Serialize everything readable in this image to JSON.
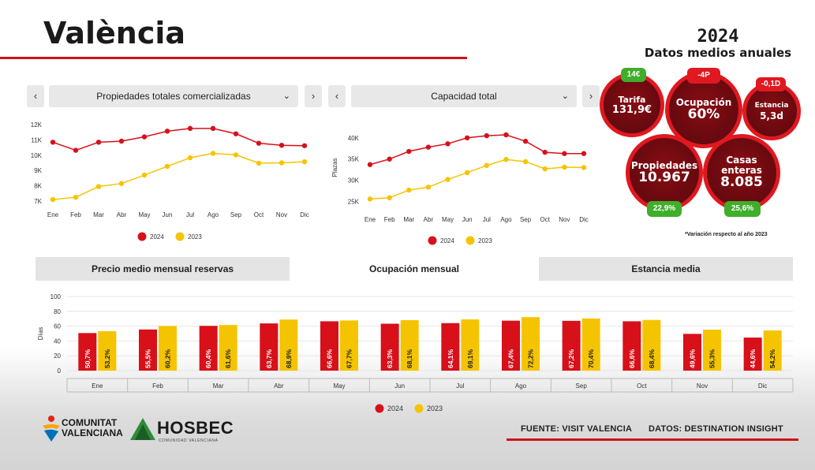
{
  "page": {
    "title": "València",
    "year": "2024",
    "subtitle": "Datos medios anuales",
    "note": "*Variación respecto al año 2023",
    "source": "FUENTE: VISIT VALENCIA",
    "data_source": "DATOS: DESTINATION INSIGHT"
  },
  "logos": {
    "comunitat_line1": "COMUNITAT",
    "comunitat_line2": "VALENCIANA",
    "hosbec": "HOSBEC",
    "hosbec_sub": "COMUNIDAD VALENCIANA"
  },
  "controls": {
    "prev_glyph": "‹",
    "next_glyph": "›",
    "chevron_glyph": "⌄",
    "left_dropdown": "Propiedades totales comercializadas",
    "right_dropdown": "Capacidad total"
  },
  "tabs": [
    {
      "label": "Precio medio mensual reservas",
      "active": false
    },
    {
      "label": "Ocupación mensual",
      "active": true
    },
    {
      "label": "Estancia media",
      "active": false
    }
  ],
  "kpis": {
    "tarifa": {
      "label": "Tarifa",
      "value": "131,9€",
      "change": "14€",
      "change_color": "green"
    },
    "ocupacion": {
      "label": "Ocupación",
      "value": "60%",
      "change": "-4P",
      "change_color": "red"
    },
    "estancia": {
      "label": "Estancia",
      "value": "5,3d",
      "change": "-0,1D",
      "change_color": "red"
    },
    "propiedades": {
      "label": "Propiedades",
      "value": "10.967",
      "change": "22,9%",
      "change_color": "green"
    },
    "casas": {
      "label_line1": "Casas",
      "label_line2": "enteras",
      "value": "8.085",
      "change": "25,6%",
      "change_color": "green"
    }
  },
  "colors": {
    "y2024": "#d7101a",
    "y2023": "#f5c400",
    "accent": "#d0101a"
  },
  "chart_data": [
    {
      "type": "line",
      "categories": [
        "Ene",
        "Feb",
        "Mar",
        "Abr",
        "May",
        "Jun",
        "Jul",
        "Ago",
        "Sep",
        "Oct",
        "Nov",
        "Dic"
      ],
      "ylim": [
        7000,
        12000
      ],
      "yticks": [
        7000,
        8000,
        9000,
        10000,
        11000,
        12000
      ],
      "ytick_labels": [
        "7K",
        "8K",
        "9K",
        "10K",
        "11K",
        "12K"
      ],
      "ylabel": "",
      "series": [
        {
          "name": "2024",
          "color": "#d7101a",
          "values": [
            10850,
            10320,
            10850,
            10920,
            11200,
            11570,
            11750,
            11750,
            11400,
            10780,
            10650,
            10620
          ]
        },
        {
          "name": "2023",
          "color": "#f5c400",
          "values": [
            7100,
            7250,
            7950,
            8150,
            8700,
            9270,
            9830,
            10120,
            10020,
            9480,
            9500,
            9570
          ]
        }
      ]
    },
    {
      "type": "line",
      "categories": [
        "Ene",
        "Feb",
        "Mar",
        "Abr",
        "May",
        "Jun",
        "Jul",
        "Ago",
        "Sep",
        "Oct",
        "Nov",
        "Dic"
      ],
      "ylim": [
        24000,
        42000
      ],
      "yticks": [
        25000,
        30000,
        35000,
        40000
      ],
      "ytick_labels": [
        "25K",
        "30K",
        "35K",
        "40K"
      ],
      "ylabel": "Plazas",
      "series": [
        {
          "name": "2024",
          "color": "#d7101a",
          "values": [
            33700,
            35000,
            36800,
            37800,
            38600,
            40000,
            40500,
            40700,
            39200,
            36600,
            36300,
            36300
          ]
        },
        {
          "name": "2023",
          "color": "#f5c400",
          "values": [
            25600,
            25900,
            27700,
            28400,
            30200,
            31800,
            33500,
            34900,
            34400,
            32700,
            33100,
            33000
          ]
        }
      ]
    },
    {
      "type": "bar",
      "categories": [
        "Ene",
        "Feb",
        "Mar",
        "Abr",
        "May",
        "Jun",
        "Jul",
        "Ago",
        "Sep",
        "Oct",
        "Nov",
        "Dic"
      ],
      "ylim": [
        0,
        100
      ],
      "yticks": [
        0,
        20,
        40,
        60,
        80,
        100
      ],
      "ylabel": "Días",
      "series": [
        {
          "name": "2024",
          "color": "#d7101a",
          "values": [
            50.7,
            55.5,
            60.4,
            63.7,
            66.6,
            63.3,
            64.1,
            67.4,
            67.2,
            66.6,
            49.6,
            44.6
          ],
          "labels": [
            "50,7%",
            "55,5%",
            "60,4%",
            "63,7%",
            "66,6%",
            "63,3%",
            "64,1%",
            "67,4%",
            "67,2%",
            "66,6%",
            "49,6%",
            "44,6%"
          ]
        },
        {
          "name": "2023",
          "color": "#f5c400",
          "values": [
            53.2,
            60.2,
            61.6,
            68.9,
            67.7,
            68.1,
            69.1,
            72.2,
            70.4,
            68.4,
            55.3,
            54.2
          ],
          "labels": [
            "53,2%",
            "60,2%",
            "61,6%",
            "68,9%",
            "67,7%",
            "68,1%",
            "69,1%",
            "72,2%",
            "70,4%",
            "68,4%",
            "55,3%",
            "54,2%"
          ]
        }
      ]
    }
  ]
}
